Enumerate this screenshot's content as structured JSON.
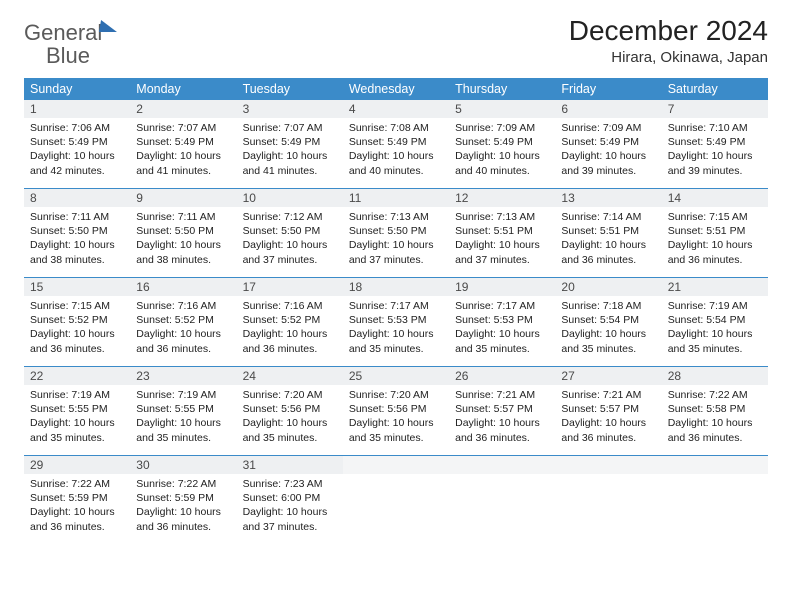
{
  "brand": {
    "part1": "General",
    "part2": "Blue"
  },
  "title": "December 2024",
  "location": "Hirara, Okinawa, Japan",
  "colors": {
    "header_bg": "#3b8bc9",
    "header_text": "#ffffff",
    "daynum_bg": "#eef0f2",
    "row_border": "#3b8bc9",
    "brand_gray": "#5a5a5a",
    "brand_blue": "#2f6fb1"
  },
  "weekdays": [
    "Sunday",
    "Monday",
    "Tuesday",
    "Wednesday",
    "Thursday",
    "Friday",
    "Saturday"
  ],
  "weeks": [
    [
      {
        "n": "1",
        "sr": "7:06 AM",
        "ss": "5:49 PM",
        "dl": "10 hours and 42 minutes."
      },
      {
        "n": "2",
        "sr": "7:07 AM",
        "ss": "5:49 PM",
        "dl": "10 hours and 41 minutes."
      },
      {
        "n": "3",
        "sr": "7:07 AM",
        "ss": "5:49 PM",
        "dl": "10 hours and 41 minutes."
      },
      {
        "n": "4",
        "sr": "7:08 AM",
        "ss": "5:49 PM",
        "dl": "10 hours and 40 minutes."
      },
      {
        "n": "5",
        "sr": "7:09 AM",
        "ss": "5:49 PM",
        "dl": "10 hours and 40 minutes."
      },
      {
        "n": "6",
        "sr": "7:09 AM",
        "ss": "5:49 PM",
        "dl": "10 hours and 39 minutes."
      },
      {
        "n": "7",
        "sr": "7:10 AM",
        "ss": "5:49 PM",
        "dl": "10 hours and 39 minutes."
      }
    ],
    [
      {
        "n": "8",
        "sr": "7:11 AM",
        "ss": "5:50 PM",
        "dl": "10 hours and 38 minutes."
      },
      {
        "n": "9",
        "sr": "7:11 AM",
        "ss": "5:50 PM",
        "dl": "10 hours and 38 minutes."
      },
      {
        "n": "10",
        "sr": "7:12 AM",
        "ss": "5:50 PM",
        "dl": "10 hours and 37 minutes."
      },
      {
        "n": "11",
        "sr": "7:13 AM",
        "ss": "5:50 PM",
        "dl": "10 hours and 37 minutes."
      },
      {
        "n": "12",
        "sr": "7:13 AM",
        "ss": "5:51 PM",
        "dl": "10 hours and 37 minutes."
      },
      {
        "n": "13",
        "sr": "7:14 AM",
        "ss": "5:51 PM",
        "dl": "10 hours and 36 minutes."
      },
      {
        "n": "14",
        "sr": "7:15 AM",
        "ss": "5:51 PM",
        "dl": "10 hours and 36 minutes."
      }
    ],
    [
      {
        "n": "15",
        "sr": "7:15 AM",
        "ss": "5:52 PM",
        "dl": "10 hours and 36 minutes."
      },
      {
        "n": "16",
        "sr": "7:16 AM",
        "ss": "5:52 PM",
        "dl": "10 hours and 36 minutes."
      },
      {
        "n": "17",
        "sr": "7:16 AM",
        "ss": "5:52 PM",
        "dl": "10 hours and 36 minutes."
      },
      {
        "n": "18",
        "sr": "7:17 AM",
        "ss": "5:53 PM",
        "dl": "10 hours and 35 minutes."
      },
      {
        "n": "19",
        "sr": "7:17 AM",
        "ss": "5:53 PM",
        "dl": "10 hours and 35 minutes."
      },
      {
        "n": "20",
        "sr": "7:18 AM",
        "ss": "5:54 PM",
        "dl": "10 hours and 35 minutes."
      },
      {
        "n": "21",
        "sr": "7:19 AM",
        "ss": "5:54 PM",
        "dl": "10 hours and 35 minutes."
      }
    ],
    [
      {
        "n": "22",
        "sr": "7:19 AM",
        "ss": "5:55 PM",
        "dl": "10 hours and 35 minutes."
      },
      {
        "n": "23",
        "sr": "7:19 AM",
        "ss": "5:55 PM",
        "dl": "10 hours and 35 minutes."
      },
      {
        "n": "24",
        "sr": "7:20 AM",
        "ss": "5:56 PM",
        "dl": "10 hours and 35 minutes."
      },
      {
        "n": "25",
        "sr": "7:20 AM",
        "ss": "5:56 PM",
        "dl": "10 hours and 35 minutes."
      },
      {
        "n": "26",
        "sr": "7:21 AM",
        "ss": "5:57 PM",
        "dl": "10 hours and 36 minutes."
      },
      {
        "n": "27",
        "sr": "7:21 AM",
        "ss": "5:57 PM",
        "dl": "10 hours and 36 minutes."
      },
      {
        "n": "28",
        "sr": "7:22 AM",
        "ss": "5:58 PM",
        "dl": "10 hours and 36 minutes."
      }
    ],
    [
      {
        "n": "29",
        "sr": "7:22 AM",
        "ss": "5:59 PM",
        "dl": "10 hours and 36 minutes."
      },
      {
        "n": "30",
        "sr": "7:22 AM",
        "ss": "5:59 PM",
        "dl": "10 hours and 36 minutes."
      },
      {
        "n": "31",
        "sr": "7:23 AM",
        "ss": "6:00 PM",
        "dl": "10 hours and 37 minutes."
      },
      null,
      null,
      null,
      null
    ]
  ],
  "labels": {
    "sunrise": "Sunrise:",
    "sunset": "Sunset:",
    "daylight": "Daylight:"
  }
}
